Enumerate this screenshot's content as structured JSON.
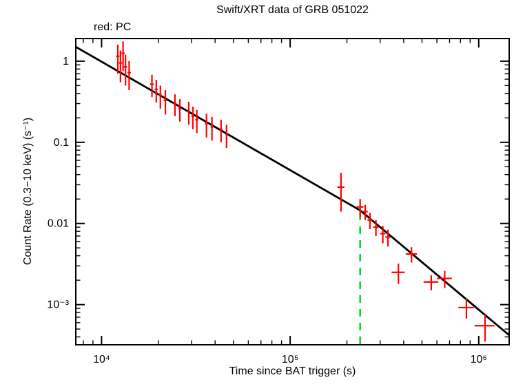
{
  "chart_data": {
    "type": "scatter",
    "title": "Swift/XRT data of GRB 051022",
    "mode_label": "red: PC",
    "xlabel": "Time since BAT trigger (s)",
    "ylabel": "Count Rate (0.3−10 keV) (s⁻¹)",
    "xscale": "log",
    "yscale": "log",
    "grid": false,
    "legend": "none",
    "xlim": [
      7300,
      1450000
    ],
    "ylim": [
      0.00032,
      1.9
    ],
    "x_ticks": [
      {
        "v": 10000,
        "label": "10⁴"
      },
      {
        "v": 100000,
        "label": "10⁵"
      },
      {
        "v": 1000000,
        "label": "10⁶"
      }
    ],
    "y_ticks": [
      {
        "v": 1,
        "label": "1"
      },
      {
        "v": 0.1,
        "label": "0.1"
      },
      {
        "v": 0.01,
        "label": "0.01"
      },
      {
        "v": 0.001,
        "label": "10⁻³"
      }
    ],
    "colors": {
      "data": "#ff0000",
      "fit": "#000000",
      "break_marker": "#00dd22",
      "frame": "#000000"
    },
    "fit_line": {
      "comment": "broken power-law fit, vertices in data units",
      "points": [
        [
          7300,
          1.5
        ],
        [
          235000,
          0.0145
        ],
        [
          1450000,
          0.00042
        ]
      ]
    },
    "break_line": {
      "x": 235000,
      "y_top": 0.0145
    },
    "series": [
      {
        "name": "PC",
        "color": "#ff0000",
        "columns": [
          "x",
          "xerr",
          "y",
          "yerr"
        ],
        "points": [
          [
            12200,
            250,
            1.15,
            0.45
          ],
          [
            12600,
            250,
            0.95,
            0.4
          ],
          [
            13000,
            250,
            1.25,
            0.5
          ],
          [
            13400,
            280,
            0.85,
            0.35
          ],
          [
            14000,
            300,
            0.72,
            0.28
          ],
          [
            18500,
            400,
            0.52,
            0.16
          ],
          [
            19500,
            400,
            0.45,
            0.14
          ],
          [
            20500,
            420,
            0.38,
            0.12
          ],
          [
            21800,
            450,
            0.33,
            0.11
          ],
          [
            24500,
            500,
            0.3,
            0.09
          ],
          [
            26000,
            500,
            0.26,
            0.08
          ],
          [
            29000,
            550,
            0.24,
            0.075
          ],
          [
            30500,
            550,
            0.21,
            0.065
          ],
          [
            32000,
            600,
            0.19,
            0.06
          ],
          [
            36000,
            650,
            0.17,
            0.055
          ],
          [
            38500,
            650,
            0.155,
            0.05
          ],
          [
            43000,
            700,
            0.145,
            0.045
          ],
          [
            46000,
            700,
            0.125,
            0.04
          ],
          [
            186000,
            8000,
            0.028,
            0.014
          ],
          [
            235000,
            10000,
            0.016,
            0.004
          ],
          [
            250000,
            8000,
            0.014,
            0.003
          ],
          [
            265000,
            8000,
            0.011,
            0.0025
          ],
          [
            285000,
            9000,
            0.009,
            0.002
          ],
          [
            310000,
            10000,
            0.0075,
            0.0018
          ],
          [
            330000,
            10000,
            0.0068,
            0.0016
          ],
          [
            375000,
            30000,
            0.0025,
            0.0007
          ],
          [
            440000,
            30000,
            0.0042,
            0.0009
          ],
          [
            560000,
            50000,
            0.0019,
            0.0004
          ],
          [
            660000,
            60000,
            0.0021,
            0.0005
          ],
          [
            860000,
            80000,
            0.00092,
            0.00025
          ],
          [
            1080000,
            130000,
            0.00055,
            0.0002
          ]
        ]
      }
    ]
  }
}
